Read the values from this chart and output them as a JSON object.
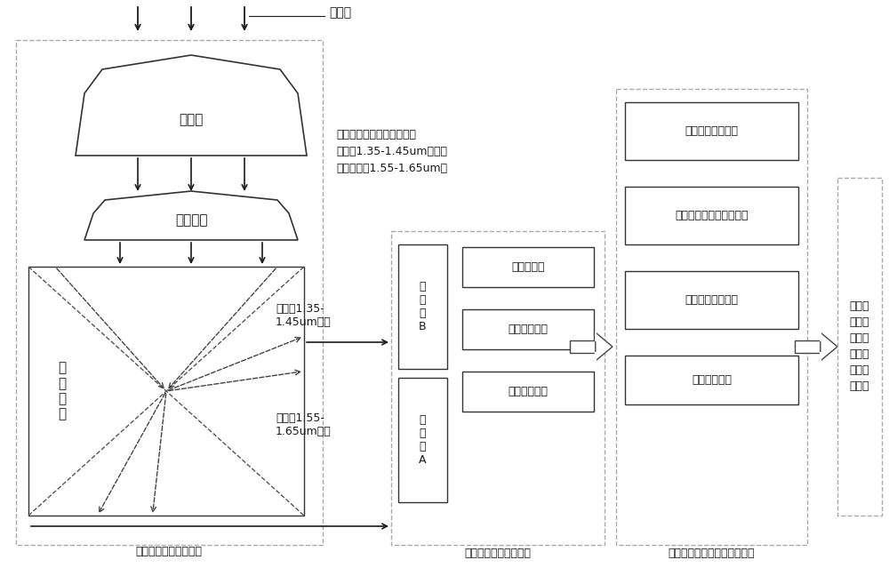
{
  "bg_color": "#ffffff",
  "text_color": "#1a1a1a",
  "title": "入射光",
  "labels": {
    "sunshade": "遗光罩",
    "lens": "光学镜头",
    "prism_text": "分\n光\n棱\n镜",
    "system_label": "分光谱双光路光学系统",
    "coating_note": "分光棱镜镀膜面：反射光谱\n范围为1.35-1.45um；透射\n光谱范围为1.55-1.65um。",
    "reflect_label": "反射的1.35-\n1.45um波段",
    "transmit_label": "透射的1.55-\n1.65um波段",
    "detector_B": "探\n测\n器\nB",
    "detector_A": "探\n测\n器\nA",
    "preprocess": "前置处理板",
    "control": "控制处理电路",
    "image_proc": "图像处理电路",
    "detect_label": "图像探测及预处理组件",
    "dual_detect": "双探测器协同处理",
    "dual_pixel": "双光路图像像素对齐标定",
    "diff_gray": "差分图像灰度匹配",
    "diff_algo": "图像差分算法",
    "algo_label": "差分图像处理标定方法与算法",
    "result": "抑制白\n天大气\n湍流效\n应的大\n视场测\n星图像"
  }
}
